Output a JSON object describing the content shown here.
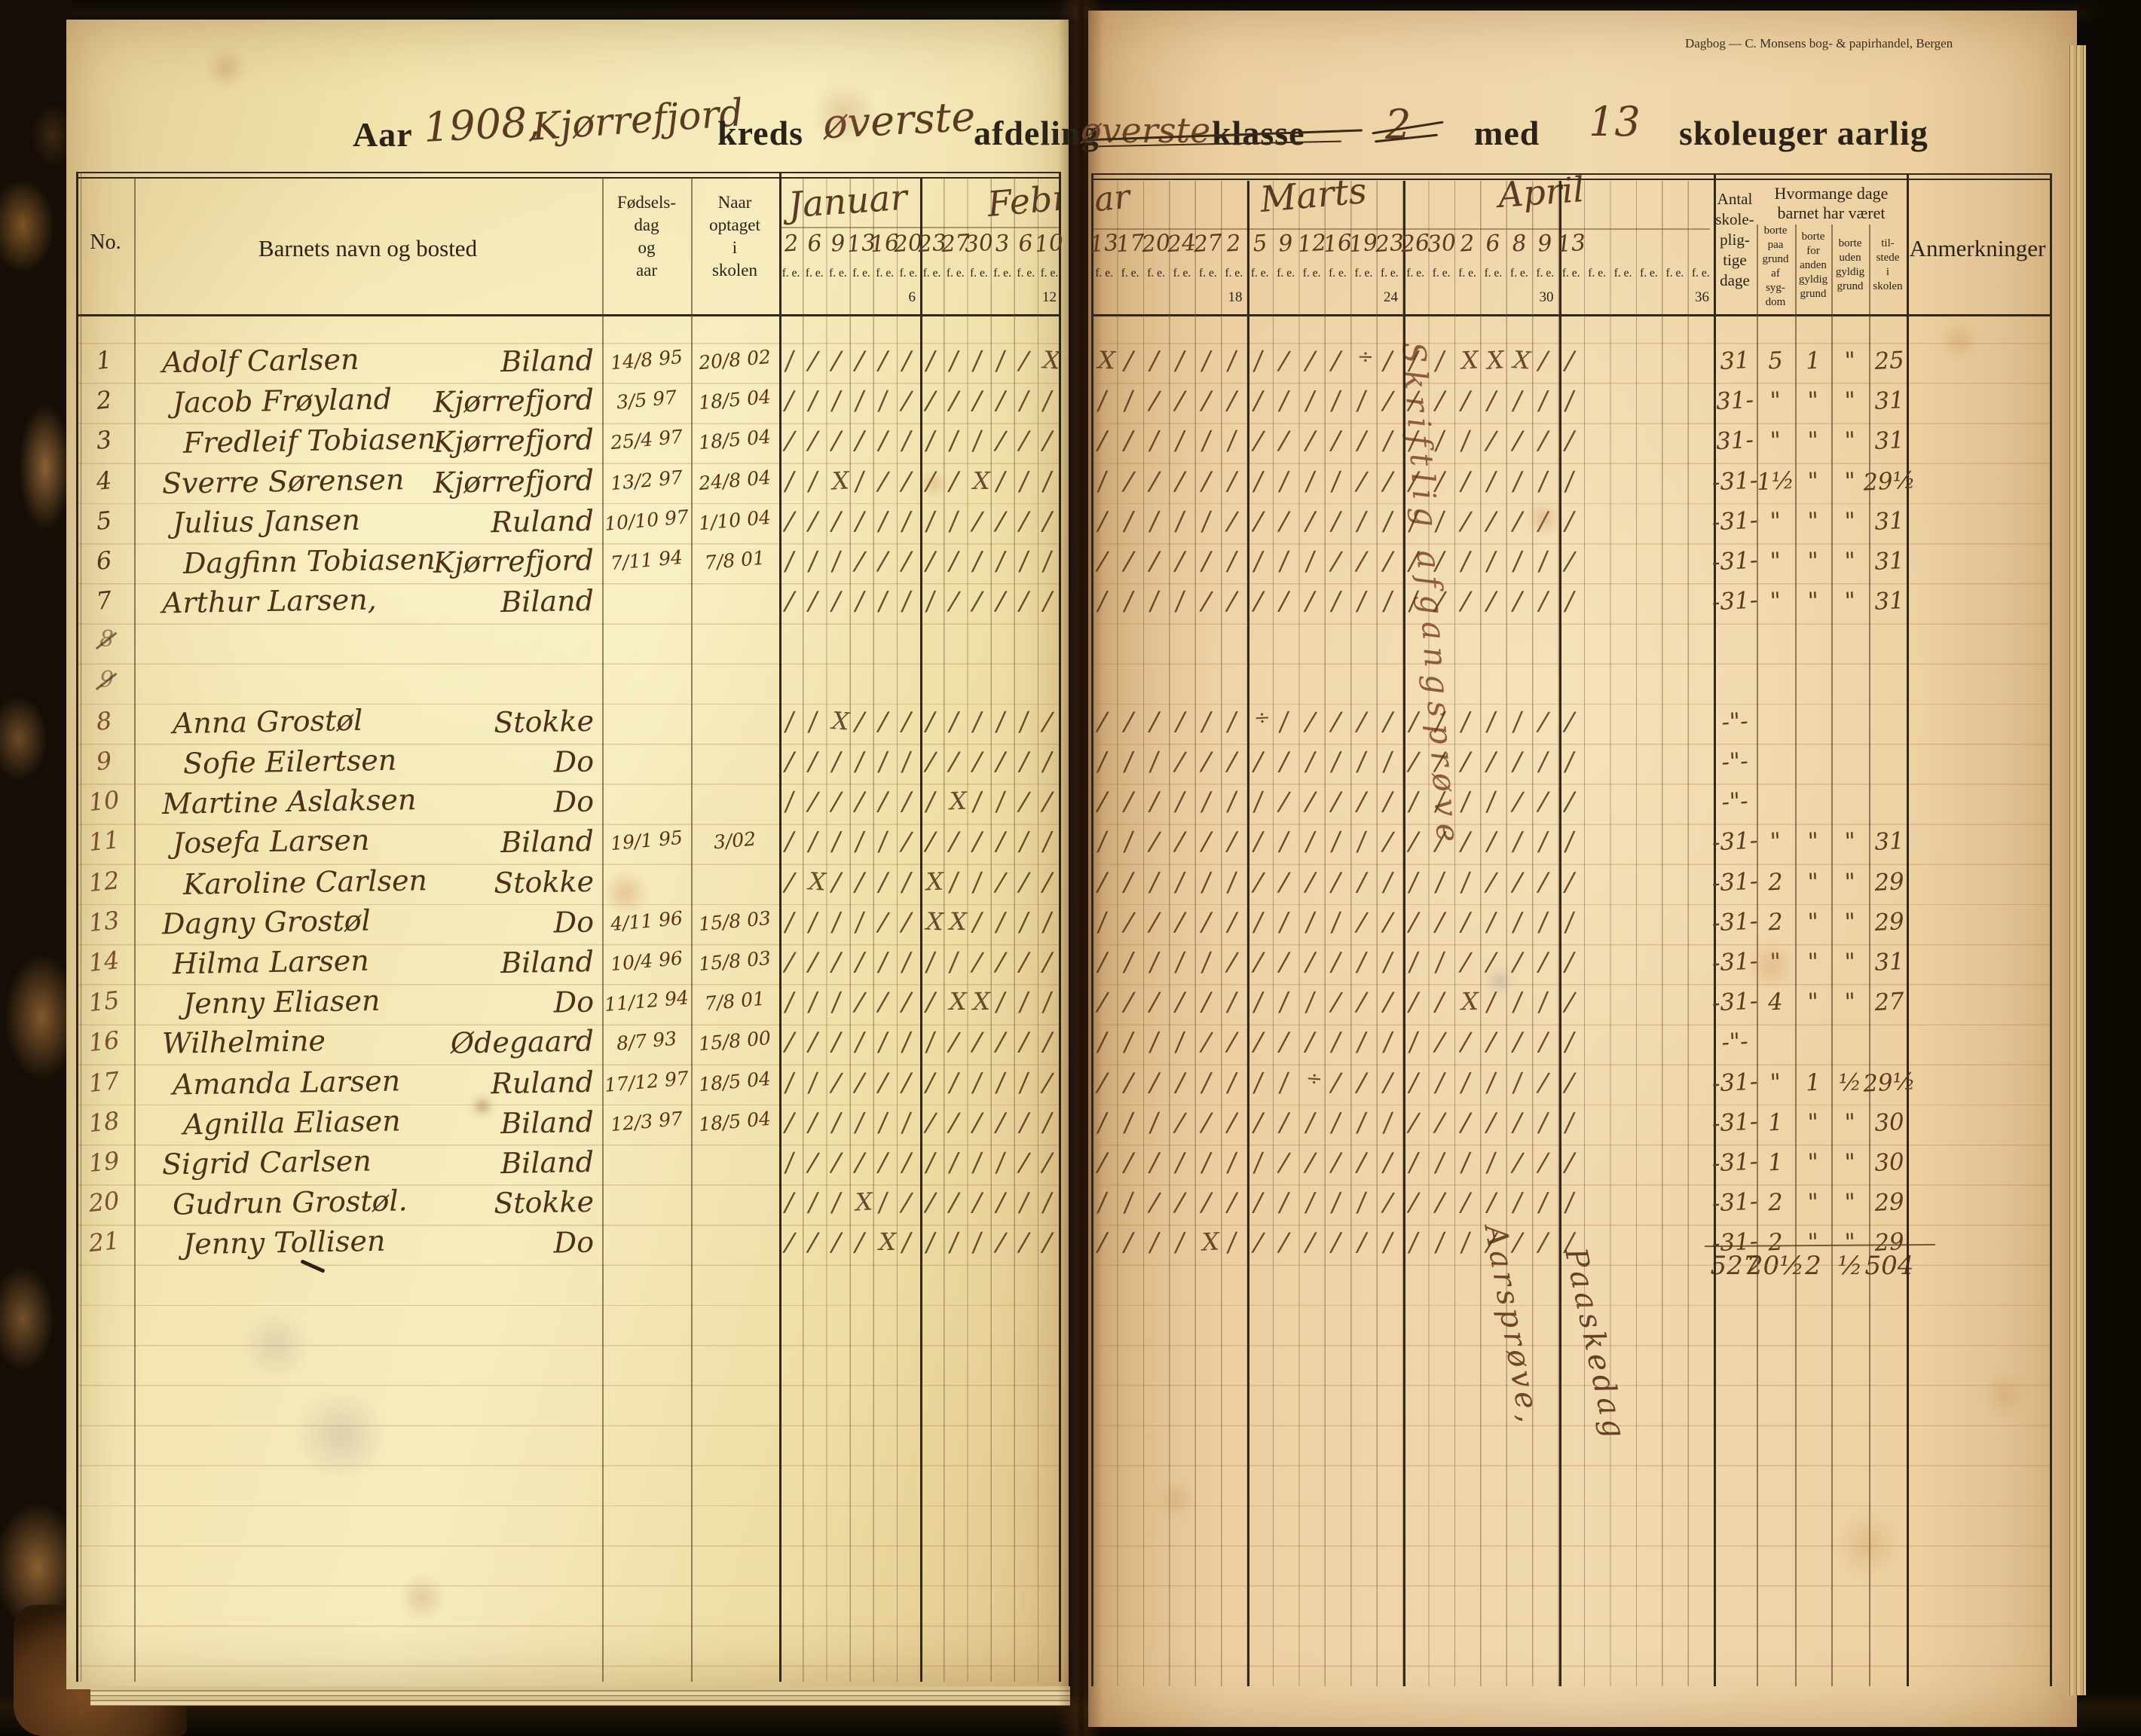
{
  "imprint": "Dagbog  —  C. Monsens bog- & papirhandel, Bergen",
  "title": {
    "aar_label": "Aar",
    "year": "1908,",
    "kreds_value": "Kjørrefjord",
    "kreds_label": "kreds",
    "afdeling_value": "øverste",
    "afdeling_label": "afdeling",
    "klasse_struck_value": "øverste",
    "klasse_label": "klasse",
    "klasse_number": "2",
    "med_label": "med",
    "weeks_value": "13",
    "weeks_label": "skoleuger aarlig"
  },
  "table": {
    "col_no": "No.",
    "col_name": "Barnets navn og bosted",
    "col_born_lines": [
      "Fødsels-",
      "dag",
      "og",
      "aar"
    ],
    "col_enrolled_lines": [
      "Naar",
      "optaget",
      "i",
      "skolen"
    ],
    "fe_label": "f. e.",
    "months": [
      {
        "text": "Januar"
      },
      {
        "text": "Februar"
      },
      {
        "text": "ar"
      },
      {
        "text": "Marts"
      },
      {
        "text": "April"
      }
    ],
    "day_dates": [
      "2",
      "6",
      "9",
      "13",
      "16",
      "20",
      "23",
      "27",
      "30",
      "3",
      "6",
      "10",
      "13",
      "17",
      "20",
      "24",
      "27",
      "2",
      "5",
      "9",
      "12",
      "16",
      "19",
      "23",
      "26",
      "30",
      "2",
      "6",
      "8",
      "9",
      "13",
      "",
      "",
      "",
      "",
      ""
    ],
    "week_numbers": [
      "6",
      "12",
      "18",
      "24",
      "30",
      "36"
    ],
    "summary": {
      "antal_lines": [
        "Antal",
        "skole-",
        "plig-",
        "tige",
        "dage"
      ],
      "span_lines": [
        "Hvormange dage",
        "barnet har været"
      ],
      "sub_columns": [
        [
          "borte",
          "paa",
          "grund",
          "af",
          "syg-",
          "dom"
        ],
        [
          "borte",
          "for",
          "anden",
          "gyldig",
          "grund"
        ],
        [
          "borte",
          "uden",
          "gyldig",
          "grund"
        ],
        [
          "til-",
          "stede",
          "i",
          "skolen"
        ]
      ],
      "col_anm": "Anmerkninger"
    }
  },
  "ghost_rows": [
    {
      "label": "8"
    },
    {
      "label": "9"
    }
  ],
  "rows": [
    {
      "no": "1",
      "given": "Adolf Carlsen",
      "place": "Biland",
      "born": "14/8 95",
      "enrolled": "20/8 02",
      "marks": "///////////XX/////////÷///XXX//",
      "antal": "31",
      "syg": "5",
      "anden": "1",
      "uden": "\"",
      "tilstede": "25"
    },
    {
      "no": "2",
      "given": "Jacob Frøyland",
      "place": "Kjørrefjord",
      "born": "3/5 97",
      "enrolled": "18/5 04",
      "marks": "///////////////////////////////",
      "antal": "31-",
      "syg": "\"",
      "anden": "\"",
      "uden": "\"",
      "tilstede": "31"
    },
    {
      "no": "3",
      "given": "Fredleif Tobiasen",
      "place": "Kjørrefjord",
      "born": "25/4 97",
      "enrolled": "18/5 04",
      "marks": "///////////////////////////////",
      "antal": "31-",
      "syg": "\"",
      "anden": "\"",
      "uden": "\"",
      "tilstede": "31"
    },
    {
      "no": "4",
      "given": "Sverre Sørensen",
      "place": "Kjørrefjord",
      "born": "13/2 97",
      "enrolled": "24/8 04",
      "marks": "//X/////X//////////////////////",
      "antal": "-31-",
      "syg": "1½",
      "anden": "\"",
      "uden": "\"",
      "tilstede": "29½"
    },
    {
      "no": "5",
      "given": "Julius Jansen",
      "place": "Ruland",
      "born": "10/10 97",
      "enrolled": "1/10 04",
      "marks": "///////////////////////////////",
      "antal": "-31-",
      "syg": "\"",
      "anden": "\"",
      "uden": "\"",
      "tilstede": "31"
    },
    {
      "no": "6",
      "given": "Dagfinn Tobiasen",
      "place": "Kjørrefjord",
      "born": "7/11 94",
      "enrolled": "7/8 01",
      "marks": "///////////////////////////////",
      "antal": "-31-",
      "syg": "\"",
      "anden": "\"",
      "uden": "\"",
      "tilstede": "31"
    },
    {
      "no": "7",
      "given": "Arthur Larsen,",
      "place": "Biland",
      "born": "",
      "enrolled": "",
      "marks": "///////////////////////////////",
      "antal": "-31-",
      "syg": "\"",
      "anden": "\"",
      "uden": "\"",
      "tilstede": "31"
    },
    {
      "no": "8",
      "given": "Anna Grostøl",
      "place": "Stokke",
      "born": "",
      "enrolled": "",
      "marks": "//X///////////////÷////////////",
      "antal": "-\"-",
      "syg": "",
      "anden": "",
      "uden": "",
      "tilstede": ""
    },
    {
      "no": "9",
      "given": "Sofie Eilertsen",
      "place": "Do",
      "born": "",
      "enrolled": "",
      "marks": "///////////////////////////////",
      "antal": "-\"-",
      "syg": "",
      "anden": "",
      "uden": "",
      "tilstede": ""
    },
    {
      "no": "10",
      "given": "Martine Aslaksen",
      "place": "Do",
      "born": "",
      "enrolled": "",
      "marks": "///////X///////////////////////",
      "antal": "-\"-",
      "syg": "",
      "anden": "",
      "uden": "",
      "tilstede": ""
    },
    {
      "no": "11",
      "given": "Josefa Larsen",
      "place": "Biland",
      "born": "19/1 95",
      "enrolled": "3/02",
      "marks": "///////////////////////////////",
      "antal": "-31-",
      "syg": "\"",
      "anden": "\"",
      "uden": "\"",
      "tilstede": "31"
    },
    {
      "no": "12",
      "given": "Karoline Carlsen",
      "place": "Stokke",
      "born": "",
      "enrolled": "",
      "marks": "/X////X////////////////////////",
      "antal": "-31-",
      "syg": "2",
      "anden": "\"",
      "uden": "\"",
      "tilstede": "29"
    },
    {
      "no": "13",
      "given": "Dagny Grostøl",
      "place": "Do",
      "born": "4/11 96",
      "enrolled": "15/8 03",
      "marks": "//////XX///////////////////////",
      "antal": "-31-",
      "syg": "2",
      "anden": "\"",
      "uden": "\"",
      "tilstede": "29"
    },
    {
      "no": "14",
      "given": "Hilma Larsen",
      "place": "Biland",
      "born": "10/4 96",
      "enrolled": "15/8 03",
      "marks": "///////////////////////////////",
      "antal": "-31-",
      "syg": "\"",
      "anden": "\"",
      "uden": "\"",
      "tilstede": "31"
    },
    {
      "no": "15",
      "given": "Jenny Eliasen",
      "place": "Do",
      "born": "11/12 94",
      "enrolled": "7/8 01",
      "marks": "///////XX/////////////////X////",
      "antal": "-31-",
      "syg": "4",
      "anden": "\"",
      "uden": "\"",
      "tilstede": "27"
    },
    {
      "no": "16",
      "given": "Wilhelmine",
      "place": "Ødegaard",
      "born": "8/7 93",
      "enrolled": "15/8 00",
      "marks": "///////////////////////////////",
      "antal": "-\"-",
      "syg": "",
      "anden": "",
      "uden": "",
      "tilstede": ""
    },
    {
      "no": "17",
      "given": "Amanda Larsen",
      "place": "Ruland",
      "born": "17/12 97",
      "enrolled": "18/5 04",
      "marks": "////////////////////÷//////////",
      "antal": "-31-",
      "syg": "\"",
      "anden": "1",
      "uden": "½",
      "tilstede": "29½"
    },
    {
      "no": "18",
      "given": "Agnilla Eliasen",
      "place": "Biland",
      "born": "12/3 97",
      "enrolled": "18/5 04",
      "marks": "///////////////////////////////",
      "antal": "-31-",
      "syg": "1",
      "anden": "\"",
      "uden": "\"",
      "tilstede": "30"
    },
    {
      "no": "19",
      "given": "Sigrid Carlsen",
      "place": "Biland",
      "born": "",
      "enrolled": "",
      "marks": "///////////////////////////////",
      "antal": "-31-",
      "syg": "1",
      "anden": "\"",
      "uden": "\"",
      "tilstede": "30"
    },
    {
      "no": "20",
      "given": "Gudrun Grostøl.",
      "place": "Stokke",
      "born": "",
      "enrolled": "",
      "marks": "///X///////////////////////////",
      "antal": "-31-",
      "syg": "2",
      "anden": "\"",
      "uden": "\"",
      "tilstede": "29"
    },
    {
      "no": "21",
      "given": "Jenny Tollisen",
      "place": "Do",
      "born": "",
      "enrolled": "",
      "marks": "////X///////////X//////////////",
      "antal": "-31-",
      "syg": "2",
      "anden": "\"",
      "uden": "\"",
      "tilstede": "29"
    }
  ],
  "totals": {
    "antal": "527",
    "syg": "20½",
    "anden": "2",
    "uden": "½",
    "tilstede": "504"
  },
  "annotations": {
    "exam": "Skriftlig afgangsprøve",
    "aarsprove": "Aarsprøve,",
    "paaskedag": "Paaskedag"
  },
  "colors": {
    "paper_left": "#f2e2ac",
    "paper_right": "#ecd0a2",
    "ink_print": "#2b2218",
    "ink_hand": "#5a3a22",
    "cover": "#150e06",
    "rule_faint": "#b07a4e"
  }
}
